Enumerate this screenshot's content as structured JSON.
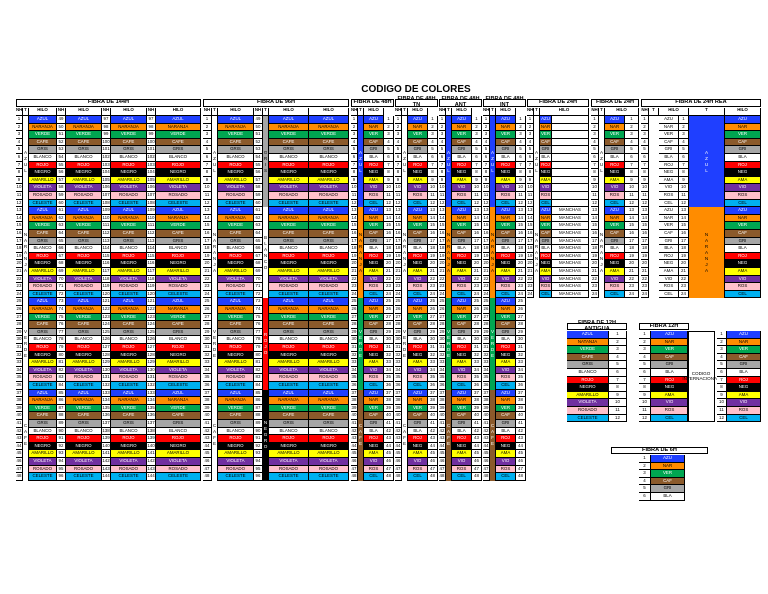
{
  "title": "CODIGO DE COLORES",
  "colors": {
    "AZUL": "#1f3fff",
    "NARANJA": "#ff8c00",
    "VERDE": "#00a651",
    "CAFE": "#8b5a2b",
    "GRIS": "#a6a6a6",
    "BLANCO": "#ffffff",
    "ROJO": "#ff0000",
    "NEGRO": "#000000",
    "AMARILLO": "#ffff00",
    "VIOLETA": "#7030a0",
    "ROSADO": "#ffc0cb",
    "CELESTE": "#00b0f0"
  },
  "labels": {
    "hilo": "HILO",
    "nh": "NH",
    "t": "T",
    "manchas": "MANCHAS",
    "codigo_internacional": "CODIGO INTERNACIONAL"
  },
  "tables": {
    "t144": {
      "header": "FIBRA DE 144H"
    },
    "t96": {
      "header": "FIBRA DE 96H"
    },
    "t48": {
      "header": "FIBRA DE 48H"
    },
    "t48tn": {
      "header": "FIBRA DE 48H TN"
    },
    "t48ant": {
      "header": "FIBRA DE 48H ANT"
    },
    "t48int": {
      "header": "FIBRA DE 48H INT"
    },
    "t24": {
      "header": "FIBRA DE 24H"
    },
    "t24b": {
      "header": "FIBRA DE 24H"
    },
    "t24rea": {
      "header": "FIBRA DE 24H REA"
    },
    "t12ant": {
      "header": "FIBRA DE 12H ANTIGUA"
    },
    "t12": {
      "header": "FIBRA 12H"
    },
    "t6": {
      "header": "FIBRA DE 6H"
    }
  },
  "seq12": [
    "AZUL",
    "NARANJA",
    "VERDE",
    "CAFE",
    "GRIS",
    "BLANCO",
    "ROJO",
    "NEGRO",
    "AMARILLO",
    "VIOLETA",
    "ROSADO",
    "CELESTE"
  ],
  "abbr12": [
    "AZU",
    "NAR",
    "VER",
    "CAF",
    "GRI",
    "BLA",
    "ROJ",
    "NEG",
    "AMA",
    "VIO",
    "ROS",
    "CEL"
  ],
  "seq12_ant": [
    "AZUL",
    "NARANJA",
    "VERDE",
    "CAFE",
    "GRIS",
    "BLANCO",
    "ROJO",
    "NEGRO",
    "AMARILLO",
    "VIOLETA",
    "ROSADO",
    "CELESTE"
  ],
  "ant12_labels": [
    "AZUL",
    "NATANJA",
    "VERDE",
    "CAFE",
    "GRIS",
    "BLANCO",
    "ROJO",
    "NEGRO",
    "AMARILLO",
    "VIOLETA",
    "ROSADO",
    "CELESTE"
  ],
  "tube_words_144": [
    "AZUL",
    "NARANJA",
    "VERDE",
    "CAFE",
    "GRIS",
    "BLANCO",
    "ROJO",
    "NEGRO",
    "AMARILLO",
    "VIOLETA",
    "ROSADO",
    "CELESTE"
  ],
  "tube_words_96": [
    "AZUL",
    "NARANJA",
    "VERDE",
    "CAFE",
    "GRIS",
    "BLANCO",
    "ROJO",
    "NEGRO"
  ],
  "tube_words_48": [
    "AZUL",
    "NARANJA",
    "VERDE",
    "CAFE"
  ],
  "tube_words_24": [
    "AZUL",
    "NARANJA"
  ],
  "seq6": [
    "AZUL",
    "NARANJA",
    "VERDE",
    "CAFE",
    "GRIS",
    "BLANCO"
  ],
  "abbr6": [
    "AZU",
    "NAR",
    "VER",
    "CAF",
    "GRI",
    "BLA"
  ]
}
